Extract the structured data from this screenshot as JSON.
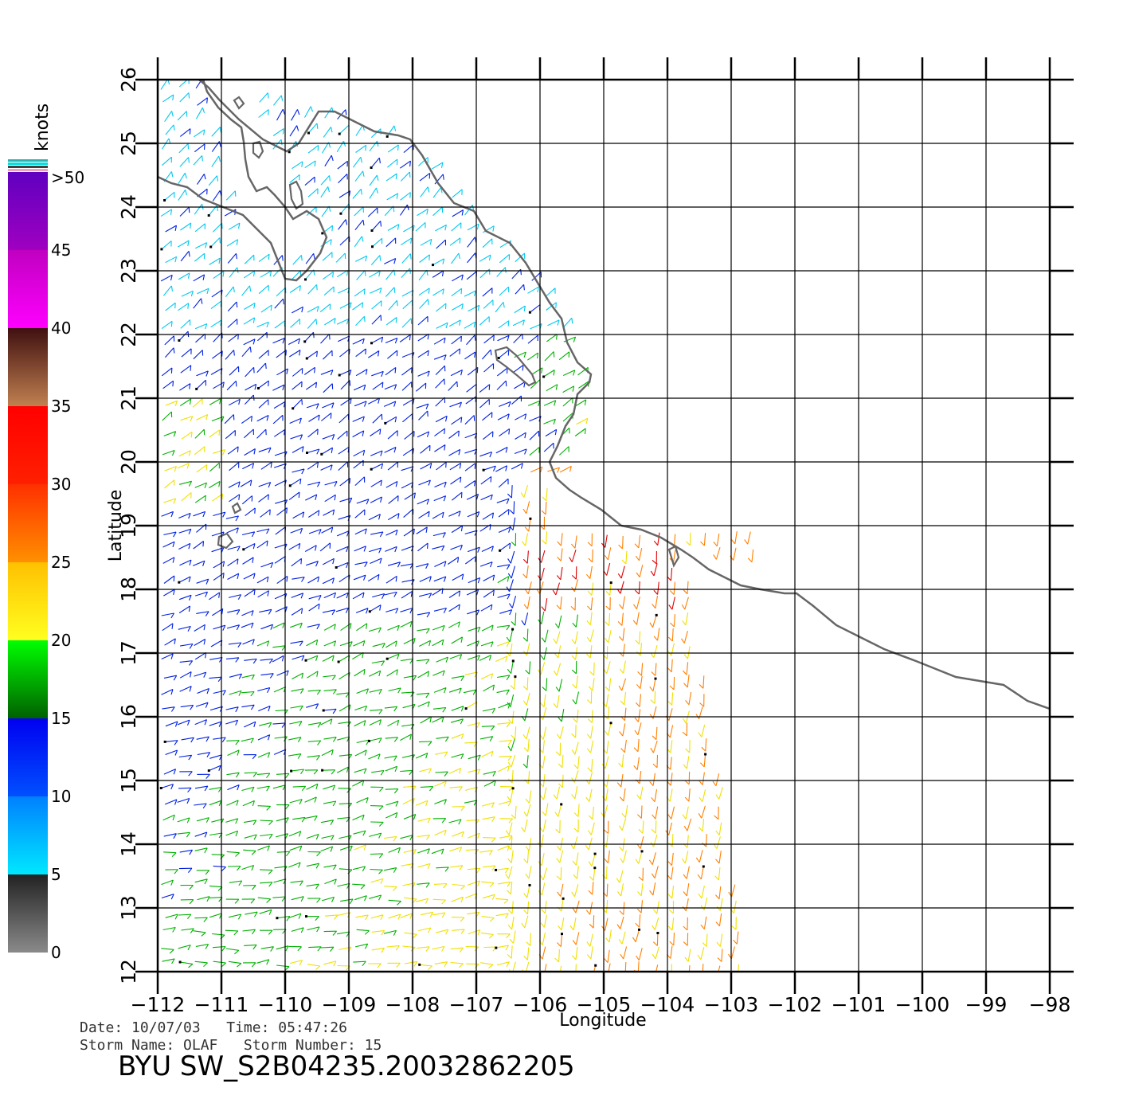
{
  "map": {
    "type": "scatterometer-wind-field",
    "lon_range": [
      -112,
      -98
    ],
    "lat_range": [
      12,
      26
    ],
    "lon_ticks": [
      -112,
      -111,
      -110,
      -109,
      -108,
      -107,
      -106,
      -105,
      -104,
      -103,
      -102,
      -101,
      -100,
      -99,
      -98
    ],
    "lon_tick_labels": [
      "−112",
      "−111",
      "−110",
      "−109",
      "−108",
      "−107",
      "−106",
      "−105",
      "−104",
      "−103",
      "−102",
      "−101",
      "−100",
      "−99",
      "−98"
    ],
    "lat_ticks": [
      12,
      13,
      14,
      15,
      16,
      17,
      18,
      19,
      20,
      21,
      22,
      23,
      24,
      25,
      26
    ],
    "lat_tick_labels": [
      "12",
      "13",
      "14",
      "15",
      "16",
      "17",
      "18",
      "19",
      "20",
      "21",
      "22",
      "23",
      "24",
      "25",
      "26"
    ],
    "xlabel": "Longitude",
    "ylabel": "Latitude",
    "grid": true,
    "coastline_color": "#666666"
  },
  "colorbar": {
    "unit_label": "knots",
    "labels": [
      "0",
      "5",
      "10",
      "15",
      "20",
      "25",
      "30",
      "35",
      "40",
      "45",
      ">50"
    ],
    "label_values": [
      0,
      5,
      10,
      15,
      20,
      25,
      30,
      35,
      40,
      45,
      50
    ],
    "segments": [
      {
        "from": 0,
        "to": 5,
        "color_bottom": "#8a8a8a",
        "color_top": "#222222"
      },
      {
        "from": 5,
        "to": 10,
        "color_bottom": "#00e8ff",
        "color_top": "#0080ff"
      },
      {
        "from": 10,
        "to": 15,
        "color_bottom": "#0050ff",
        "color_top": "#0000f0"
      },
      {
        "from": 15,
        "to": 20,
        "color_bottom": "#006000",
        "color_top": "#00ff00"
      },
      {
        "from": 20,
        "to": 25,
        "color_bottom": "#ffff20",
        "color_top": "#ffc000"
      },
      {
        "from": 25,
        "to": 30,
        "color_bottom": "#ff9000",
        "color_top": "#ff3000"
      },
      {
        "from": 30,
        "to": 35,
        "color_bottom": "#ff2000",
        "color_top": "#ff0000"
      },
      {
        "from": 35,
        "to": 40,
        "color_bottom": "#c08050",
        "color_top": "#401010"
      },
      {
        "from": 40,
        "to": 45,
        "color_bottom": "#ff00ff",
        "color_top": "#c000c0"
      },
      {
        "from": 45,
        "to": 50,
        "color_bottom": "#a000c0",
        "color_top": "#6000c0"
      }
    ]
  },
  "footer": {
    "date_line": "Date: 10/07/03   Time: 05:47:26",
    "storm_line": "Storm Name: OLAF   Storm Number: 15",
    "title": "BYU SW_S2B04235.20032862205"
  }
}
